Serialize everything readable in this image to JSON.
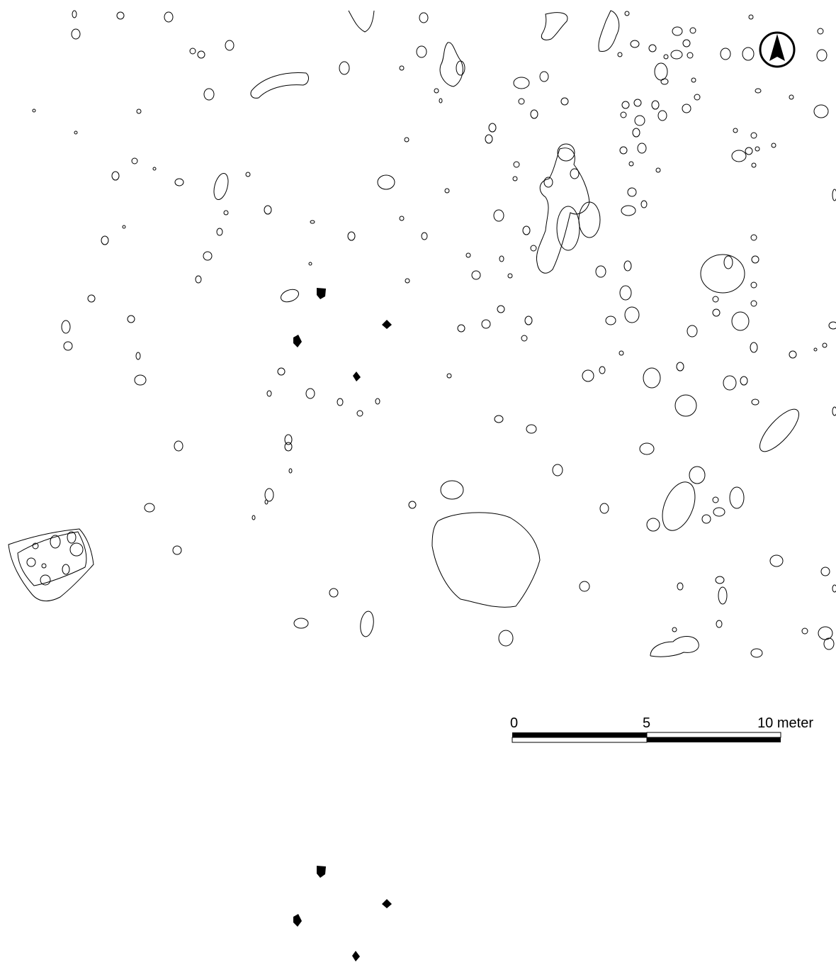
{
  "scale_bar": {
    "labels": [
      "0",
      "5",
      "10 meter"
    ]
  }
}
